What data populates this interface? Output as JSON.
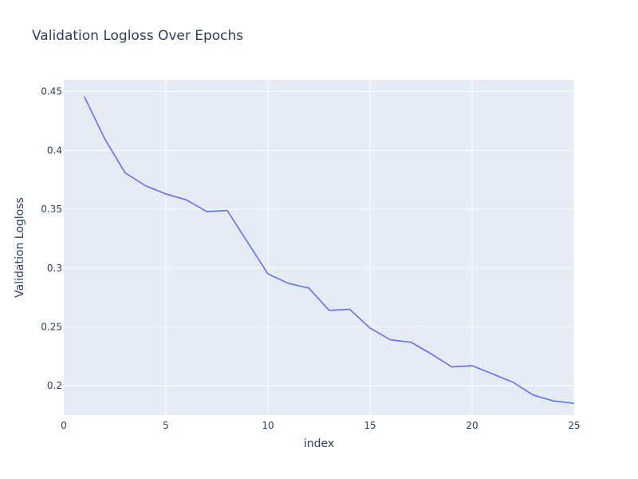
{
  "chart_data": {
    "type": "line",
    "title": "Validation Logloss Over Epochs",
    "xlabel": "index",
    "ylabel": "Validation Logloss",
    "xlim": [
      0,
      25
    ],
    "ylim": [
      0.175,
      0.46
    ],
    "x_ticks": [
      0,
      5,
      10,
      15,
      20,
      25
    ],
    "x_tick_labels": [
      "0",
      "5",
      "10",
      "15",
      "20",
      "25"
    ],
    "y_ticks": [
      0.2,
      0.25,
      0.3,
      0.35,
      0.4,
      0.45
    ],
    "y_tick_labels": [
      "0.2",
      "0.25",
      "0.3",
      "0.35",
      "0.4",
      "0.45"
    ],
    "grid": true,
    "legend": "none",
    "colors": {
      "background": "#e5ecf6",
      "grid": "#ffffff",
      "line": "#636efa",
      "text": "#2a3f5f"
    },
    "series": [
      {
        "x": [
          1,
          2,
          3,
          4,
          5,
          6,
          7,
          8,
          9,
          10,
          11,
          12,
          13,
          14,
          15,
          16,
          17,
          18,
          19,
          20,
          21,
          22,
          23,
          24,
          25
        ],
        "values": [
          0.446,
          0.41,
          0.381,
          0.37,
          0.363,
          0.358,
          0.348,
          0.349,
          0.322,
          0.295,
          0.287,
          0.283,
          0.264,
          0.265,
          0.249,
          0.239,
          0.237,
          0.227,
          0.216,
          0.217,
          0.21,
          0.203,
          0.192,
          0.187,
          0.185
        ]
      }
    ]
  }
}
